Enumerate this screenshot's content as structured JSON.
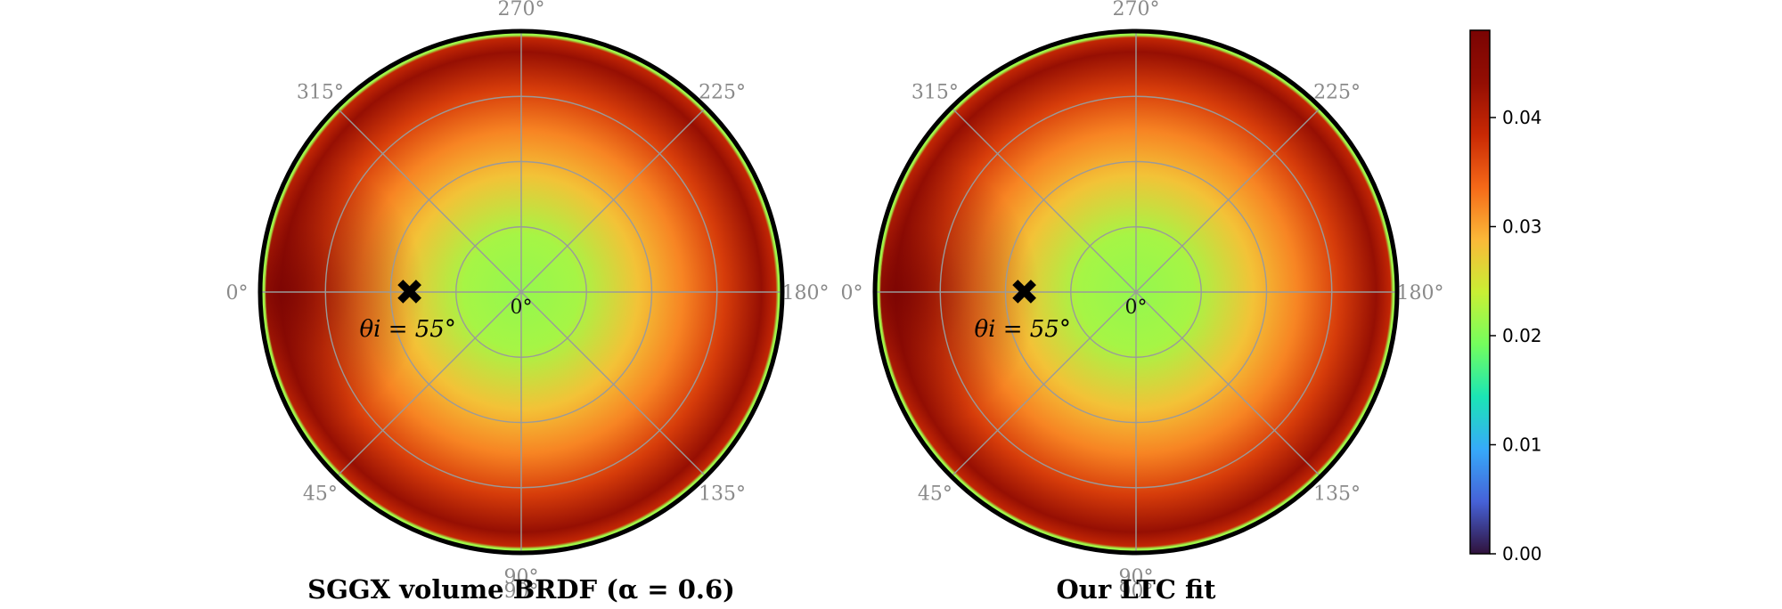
{
  "chart_data": [
    {
      "type": "heatmap",
      "projection": "polar",
      "title": "SGGX volume BRDF (α = 0.6)",
      "angular_tick_labels": [
        "270°",
        "225°",
        "180°",
        "135°",
        "90°",
        "45°",
        "0°",
        "315°"
      ],
      "center_label": "0°",
      "bottom_label": "90°",
      "radial_rings": 4,
      "grid": true,
      "marker": {
        "symbol": "✖",
        "label": "θi = 55°",
        "theta_i_deg": 55,
        "phi_deg": 0
      },
      "value_profile": {
        "center": 0.021,
        "mid_radius": 0.032,
        "near_rim": 0.043,
        "rim_max_left": 0.048
      }
    },
    {
      "type": "heatmap",
      "projection": "polar",
      "title": "Our LTC fit",
      "angular_tick_labels": [
        "270°",
        "225°",
        "180°",
        "135°",
        "90°",
        "45°",
        "0°",
        "315°"
      ],
      "center_label": "0°",
      "bottom_label": "90°",
      "radial_rings": 4,
      "grid": true,
      "marker": {
        "symbol": "✖",
        "label": "θi = 55°",
        "theta_i_deg": 55,
        "phi_deg": 0
      },
      "value_profile": {
        "center": 0.021,
        "mid_radius": 0.032,
        "near_rim": 0.043,
        "rim_max_left": 0.048
      }
    }
  ],
  "colorbar": {
    "colormap": "turbo",
    "range": [
      0.0,
      0.048
    ],
    "ticks": [
      {
        "value": 0.0,
        "label": "0.00"
      },
      {
        "value": 0.01,
        "label": "0.01"
      },
      {
        "value": 0.02,
        "label": "0.02"
      },
      {
        "value": 0.03,
        "label": "0.03"
      },
      {
        "value": 0.04,
        "label": "0.04"
      }
    ]
  },
  "colors": {
    "grid": "#9a9a9a",
    "tick_text": "#8a8a8a",
    "rim": "#000000"
  }
}
